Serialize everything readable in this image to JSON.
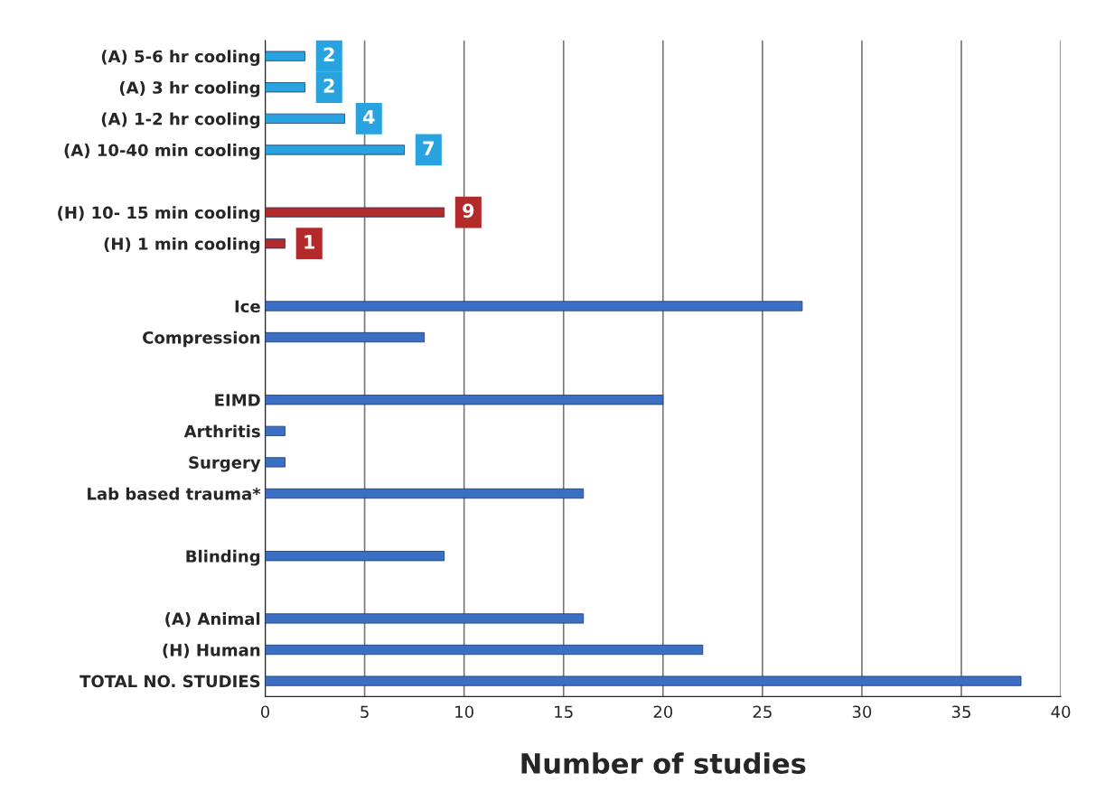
{
  "chart_data": {
    "type": "bar",
    "orientation": "horizontal",
    "xlabel": "Number of studies",
    "categories": [
      "(A) 5-6 hr cooling",
      "(A) 3 hr cooling",
      "(A) 1-2 hr cooling",
      "(A) 10-40 min cooling",
      null,
      "(H) 10- 15 min cooling",
      "(H) 1 min cooling",
      null,
      "Ice",
      "Compression",
      null,
      "EIMD",
      "Arthritis",
      "Surgery",
      "Lab based trauma*",
      null,
      "Blinding",
      null,
      "(A) Animal",
      "(H) Human",
      "TOTAL NO. STUDIES"
    ],
    "values": [
      2,
      2,
      4,
      7,
      null,
      9,
      1,
      null,
      27,
      8,
      null,
      20,
      1,
      1,
      16,
      null,
      9,
      null,
      16,
      22,
      38
    ],
    "value_labels": [
      "2",
      "2",
      "4",
      "7",
      null,
      "9",
      "1",
      null,
      null,
      null,
      null,
      null,
      null,
      null,
      null,
      null,
      null,
      null,
      null,
      null,
      null
    ],
    "colors": [
      "#29a3df",
      "#29a3df",
      "#29a3df",
      "#29a3df",
      "#3b6fc4",
      "#b22a2a",
      "#b22a2a",
      "#3b6fc4",
      "#3b6fc4",
      "#3b6fc4",
      "#3b6fc4",
      "#3b6fc4",
      "#3b6fc4",
      "#3b6fc4",
      "#3b6fc4",
      "#3b6fc4",
      "#3b6fc4",
      "#3b6fc4",
      "#3b6fc4",
      "#3b6fc4",
      "#3b6fc4"
    ],
    "xlim": [
      0,
      40
    ],
    "xticks": [
      0,
      5,
      10,
      15,
      20,
      25,
      30,
      35,
      40
    ],
    "grid": "x"
  }
}
